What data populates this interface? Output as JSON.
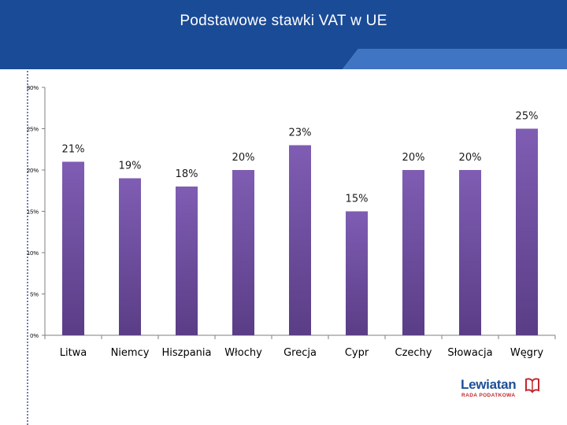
{
  "header": {
    "title": "Podstawowe stawki VAT w UE",
    "colors": {
      "band": "#1a4b97",
      "accent": "#3f75c3"
    }
  },
  "logo": {
    "name": "Lewiatan",
    "subtitle": "RADA PODATKOWA",
    "icon": "book-mark-icon",
    "colors": {
      "name": "#1d4f97",
      "sub": "#c0272d"
    }
  },
  "chart_data": {
    "type": "bar",
    "title": "",
    "xlabel": "",
    "ylabel": "",
    "categories": [
      "Litwa",
      "Niemcy",
      "Hiszpania",
      "Włochy",
      "Grecja",
      "Cypr",
      "Czechy",
      "Słowacja",
      "Węgry"
    ],
    "values": [
      21,
      19,
      18,
      20,
      23,
      15,
      20,
      20,
      25
    ],
    "data_labels": [
      "21%",
      "19%",
      "18%",
      "20%",
      "23%",
      "15%",
      "20%",
      "20%",
      "25%"
    ],
    "yticks": [
      0,
      5,
      10,
      15,
      20,
      25,
      30
    ],
    "ytick_labels": [
      "0%",
      "5%",
      "10%",
      "15%",
      "20%",
      "25%",
      "30%"
    ],
    "ylim": [
      0,
      30
    ],
    "grid": false,
    "legend": "none",
    "bar_colors": {
      "top": "#7f5db3",
      "bottom": "#5a3d86"
    }
  }
}
